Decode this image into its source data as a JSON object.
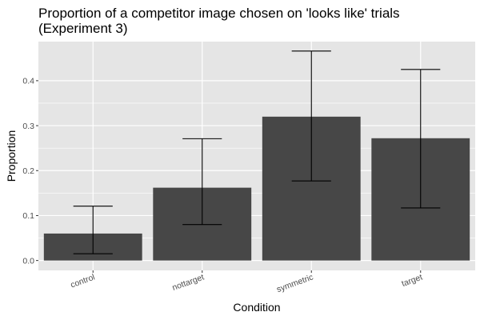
{
  "chart_data": {
    "type": "bar",
    "title_lines": [
      "Proportion of a competitor image chosen on 'looks like' trials",
      "(Experiment 3)"
    ],
    "xlabel": "Condition",
    "ylabel": "Proportion",
    "categories": [
      "control",
      "nottarget",
      "symmetric",
      "target"
    ],
    "values": [
      0.06,
      0.162,
      0.32,
      0.272
    ],
    "error_low": [
      0.015,
      0.08,
      0.177,
      0.117
    ],
    "error_high": [
      0.121,
      0.271,
      0.466,
      0.425
    ],
    "ylim": [
      -0.022,
      0.487
    ],
    "yticks": [
      0.0,
      0.1,
      0.2,
      0.3,
      0.4
    ],
    "ytick_labels": [
      "0.0",
      "0.1",
      "0.2",
      "0.3",
      "0.4"
    ],
    "grid": true,
    "legend": "none",
    "colors": {
      "bar": "#474747",
      "panel": "#e5e5e5",
      "grid": "#ffffff",
      "error_bar": "#000000"
    }
  }
}
